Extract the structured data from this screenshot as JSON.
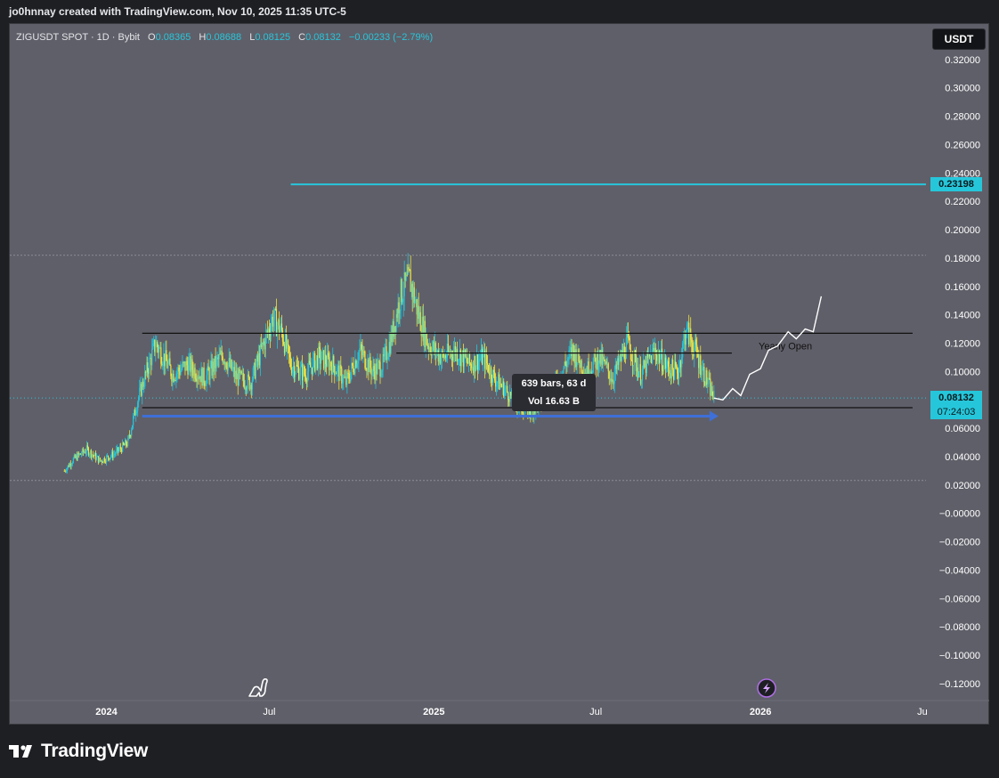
{
  "caption": "jo0hnnay created with TradingView.com, Nov 10, 2025 11:35 UTC-5",
  "legend": {
    "symbol": "ZIGUSDT SPOT · 1D · Bybit",
    "o_label": "O",
    "o_value": "0.08365",
    "h_label": "H",
    "h_value": "0.08688",
    "l_label": "L",
    "l_value": "0.08125",
    "c_label": "C",
    "c_value": "0.08132",
    "change": "−0.00233 (−2.79%)"
  },
  "currency": "USDT",
  "tooltip": {
    "line1": "639 bars, 63 d",
    "line2": "Vol 16.63 B"
  },
  "annotations": {
    "yearly_open": "Yearly Open"
  },
  "price_tags": {
    "level": "0.23198",
    "last_price": "0.08132",
    "countdown": "07:24:03"
  },
  "brand": "TradingView",
  "colors": {
    "background": "#5f5f69",
    "frame": "#1e1f23",
    "accent": "#26c6da",
    "candle_up": "#26c6da",
    "candle_down": "#f0e442",
    "projection": "#ffffff",
    "arrow": "#3f6fd8"
  },
  "icons": {
    "dino": "dino-icon",
    "lightning": "lightning-icon",
    "logo": "tradingview-logo-icon"
  },
  "chart_data": {
    "type": "candlestick",
    "title": "",
    "xlabel": "",
    "ylabel": "",
    "x_ticks": [
      "2024",
      "Jul",
      "2025",
      "Jul",
      "2026",
      "Ju"
    ],
    "y_ticks": [
      "0.32000",
      "0.30000",
      "0.28000",
      "0.26000",
      "0.24000",
      "0.22000",
      "0.20000",
      "0.18000",
      "0.16000",
      "0.14000",
      "0.12000",
      "0.10000",
      "0.08000",
      "0.06000",
      "0.04000",
      "0.02000",
      "−0.00000",
      "−0.02000",
      "−0.04000",
      "−0.06000",
      "−0.08000",
      "−0.10000",
      "−0.12000"
    ],
    "ylim": [
      -0.132,
      0.345
    ],
    "xlim": [
      "2023-09-15",
      "2026-07-05"
    ],
    "grid": false,
    "hlines": [
      {
        "y": 0.23198,
        "x_start": "2024-07-25",
        "x_end": "2026-07-05"
      },
      {
        "y": 0.127,
        "x_start": "2024-02-10",
        "x_end": "2026-06-20"
      },
      {
        "y": 0.113,
        "x_start": "2024-11-20",
        "x_end": "2025-11-30"
      },
      {
        "y": 0.0745,
        "x_start": "2024-02-10",
        "x_end": "2026-06-20"
      }
    ],
    "dotted_levels": [
      0.182,
      0.0232
    ],
    "arrow": {
      "x_start": "2024-02-10",
      "x_end": "2025-11-15",
      "y": 0.0685
    },
    "measure_box": {
      "x_start": "2024-02-10",
      "x_end": "2025-11-10",
      "y_top": 0.127,
      "y_bottom": 0.0745
    },
    "series": [
      {
        "x": [
          "2023-11-15",
          "2023-11-25",
          "2023-12-10",
          "2023-12-25",
          "2024-01-10",
          "2024-01-25",
          "2024-02-05",
          "2024-02-15",
          "2024-02-25",
          "2024-03-05",
          "2024-03-15",
          "2024-04-01",
          "2024-04-20",
          "2024-05-10",
          "2024-05-25",
          "2024-06-10",
          "2024-06-25",
          "2024-07-05",
          "2024-07-15",
          "2024-07-25",
          "2024-08-10",
          "2024-08-25",
          "2024-09-10",
          "2024-09-25",
          "2024-10-10",
          "2024-10-25",
          "2024-11-05",
          "2024-11-15",
          "2024-11-25",
          "2024-12-05",
          "2024-12-15",
          "2024-12-25",
          "2025-01-10",
          "2025-01-25",
          "2025-02-10",
          "2025-02-25",
          "2025-03-10",
          "2025-03-25",
          "2025-04-05",
          "2025-04-20",
          "2025-05-05",
          "2025-05-20",
          "2025-06-05",
          "2025-06-20",
          "2025-07-05",
          "2025-07-20",
          "2025-08-05",
          "2025-08-20",
          "2025-09-05",
          "2025-09-20",
          "2025-10-01",
          "2025-10-10",
          "2025-10-20",
          "2025-11-01",
          "2025-11-10"
        ],
        "y": [
          0.03,
          0.038,
          0.045,
          0.037,
          0.042,
          0.05,
          0.08,
          0.1,
          0.12,
          0.11,
          0.098,
          0.105,
          0.095,
          0.112,
          0.096,
          0.092,
          0.12,
          0.138,
          0.128,
          0.105,
          0.098,
          0.11,
          0.105,
          0.092,
          0.115,
          0.1,
          0.105,
          0.125,
          0.155,
          0.165,
          0.14,
          0.12,
          0.11,
          0.115,
          0.105,
          0.11,
          0.095,
          0.085,
          0.075,
          0.072,
          0.08,
          0.095,
          0.115,
          0.1,
          0.11,
          0.095,
          0.12,
          0.098,
          0.115,
          0.102,
          0.1,
          0.13,
          0.115,
          0.095,
          0.08132
        ]
      },
      {
        "name": "",
        "x": [
          "2025-11-10",
          "2025-11-20",
          "2025-12-01",
          "2025-12-10",
          "2025-12-20",
          "2026-01-01",
          "2026-01-10",
          "2026-01-20",
          "2026-02-01",
          "2026-02-10",
          "2026-02-20",
          "2026-03-01",
          "2026-03-10"
        ],
        "y": [
          0.0813,
          0.08,
          0.088,
          0.083,
          0.098,
          0.102,
          0.115,
          0.118,
          0.128,
          0.123,
          0.13,
          0.128,
          0.153
        ]
      }
    ]
  }
}
